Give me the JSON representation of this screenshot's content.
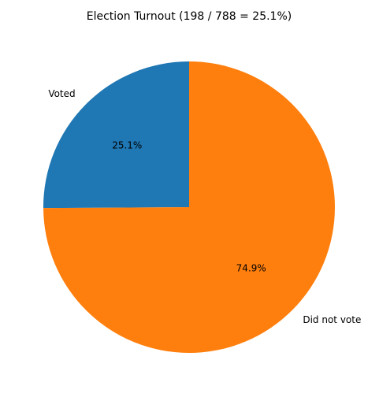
{
  "chart_data": {
    "type": "pie",
    "title": "Election Turnout (198 / 788 = 25.1%)",
    "categories": [
      "Voted",
      "Did not vote"
    ],
    "values": [
      25.1,
      74.9
    ],
    "value_labels": [
      "25.1%",
      "74.9%"
    ],
    "colors": [
      "#1f77b4",
      "#ff7f0e"
    ],
    "start_angle": 90,
    "counterclock": true
  }
}
